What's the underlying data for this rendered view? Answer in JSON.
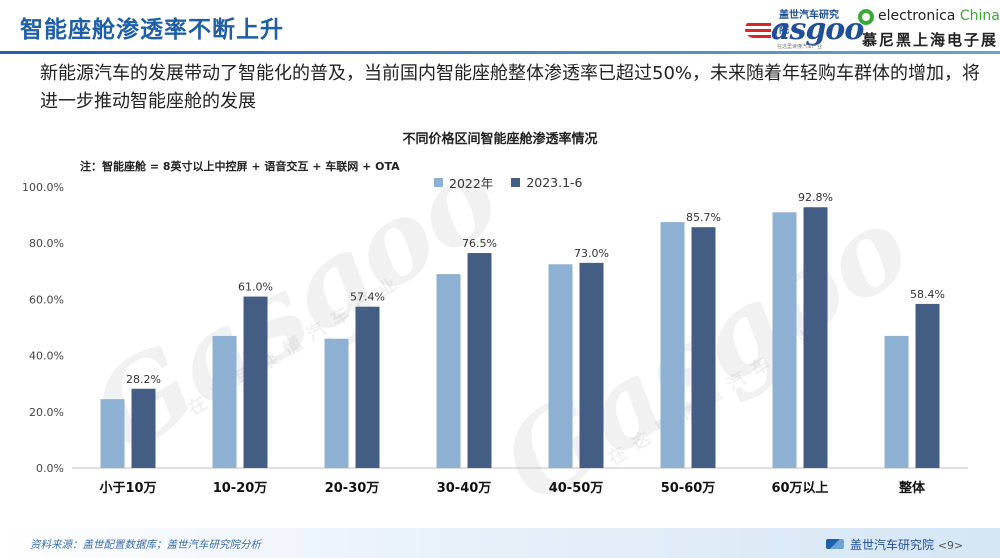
{
  "header": {
    "title": "智能座舱渗透率不断上升",
    "gasgoo_logo": {
      "top_text": "盖世汽车研究院",
      "main_text": "asgoo",
      "tagline": "在这里读懂汽车产业"
    },
    "electronica_logo": {
      "text_main": "electronica",
      "text_accent": "China",
      "text_cn": "慕尼黑上海电子展"
    }
  },
  "subtitle": "新能源汽车的发展带动了智能化的普及，当前国内智能座舱整体渗透率已超过50%，未来随着年轻购车群体的增加，将进一步推动智能座舱的发展",
  "colors": {
    "series_2022": "#8eb0d2",
    "series_2023": "#445d85",
    "accent": "#1f5fa8"
  },
  "chart_data": {
    "type": "bar",
    "title": "不同价格区间智能座舱渗透率情况",
    "note": "注：智能座舱 = 8英寸以上中控屏 + 语音交互 + 车联网 + OTA",
    "categories": [
      "小于10万",
      "10-20万",
      "20-30万",
      "30-40万",
      "40-50万",
      "50-60万",
      "60万以上",
      "整体"
    ],
    "series": [
      {
        "name": "2022年",
        "values": [
          24.5,
          47.0,
          46.0,
          69.0,
          72.5,
          87.5,
          91.0,
          47.0
        ],
        "labels": [
          "",
          "",
          "",
          "",
          "",
          "",
          "",
          ""
        ]
      },
      {
        "name": "2023.1-6",
        "values": [
          28.2,
          61.0,
          57.4,
          76.5,
          73.0,
          85.7,
          92.8,
          58.4
        ],
        "labels": [
          "28.2%",
          "61.0%",
          "57.4%",
          "76.5%",
          "73.0%",
          "85.7%",
          "92.8%",
          "58.4%"
        ]
      }
    ],
    "ylim": [
      0,
      100
    ],
    "yticks": [
      "0.0%",
      "20.0%",
      "40.0%",
      "60.0%",
      "80.0%",
      "100.0%"
    ],
    "grid": false,
    "legend_position": "top"
  },
  "footer": {
    "source": "资料来源：盖世配置数据库；盖世汽车研究院分析",
    "org": "盖世汽车研究院",
    "page": "<9>"
  },
  "watermark": {
    "text_en": "Gasgoo",
    "text_cn": "在这里读懂汽车产业"
  }
}
